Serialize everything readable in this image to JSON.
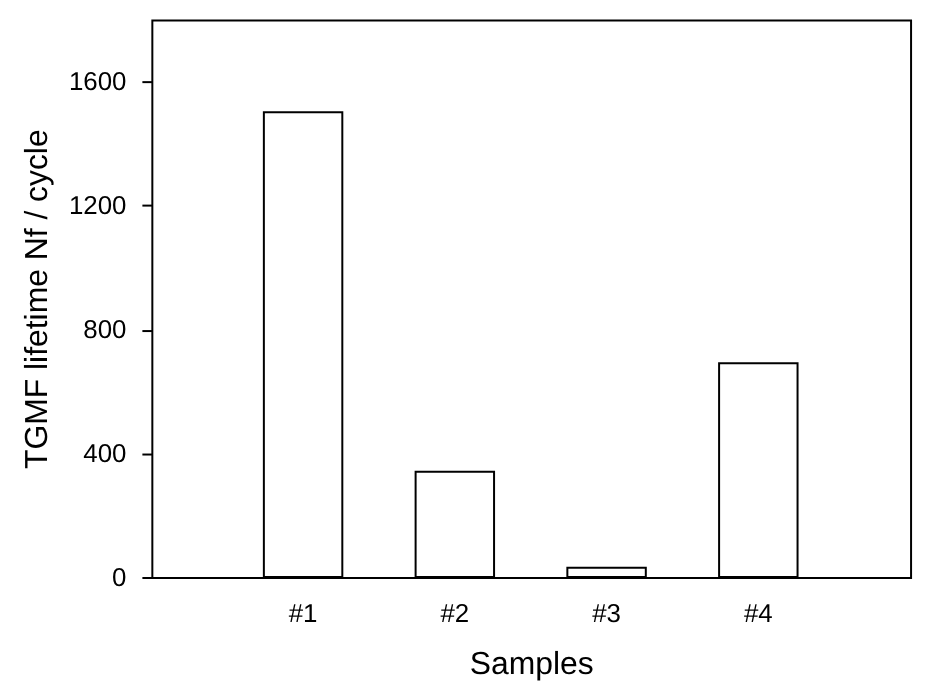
{
  "chart_data": {
    "type": "bar",
    "xlabel": "Samples",
    "ylabel": "TGMF lifetime Nf / cycle",
    "categories": [
      "#1",
      "#2",
      "#3",
      "#4"
    ],
    "values": [
      1500,
      340,
      30,
      690
    ],
    "color": "#ffffff",
    "ylim": [
      0,
      1800
    ],
    "yticks": [
      0,
      400,
      800,
      1200,
      1600
    ],
    "grid": false
  }
}
